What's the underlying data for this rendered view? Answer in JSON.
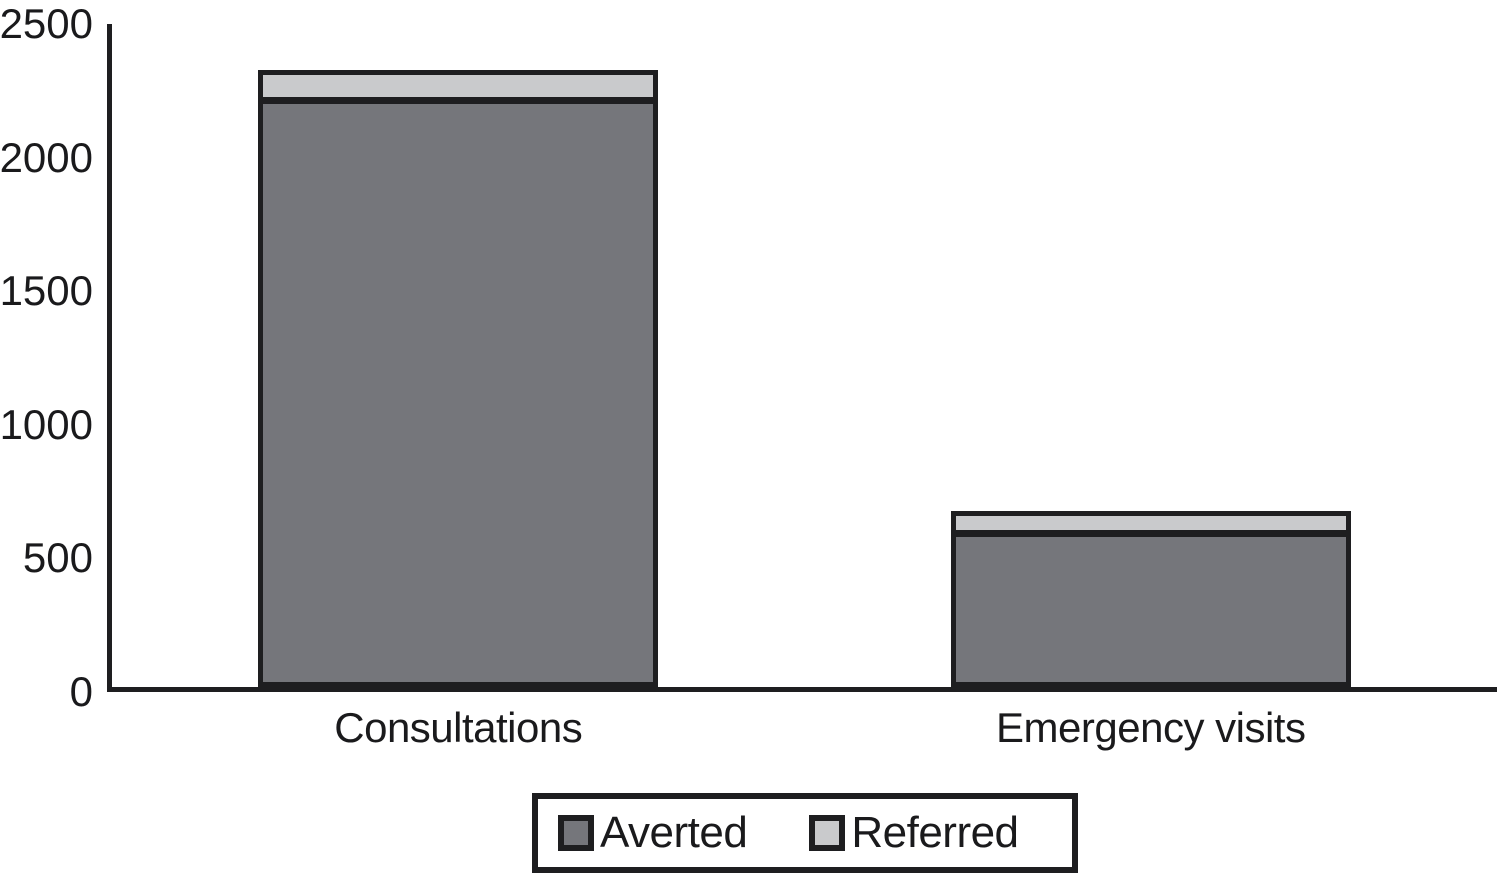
{
  "figure": {
    "background_color": "#ffffff",
    "axis_color": "#1e1e20",
    "text_color": "#1a1a1c"
  },
  "chart_data": {
    "type": "bar",
    "stacked": true,
    "title": "",
    "xlabel": "",
    "ylabel": "",
    "categories": [
      "Consultations",
      "Emergency visits"
    ],
    "series": [
      {
        "name": "Averted",
        "color": "#75767b",
        "values": [
          2200,
          580
        ]
      },
      {
        "name": "Referred",
        "color": "#c9cacc",
        "values": [
          110,
          80
        ]
      }
    ],
    "totals": [
      2310,
      660
    ],
    "ylim": [
      0,
      2500
    ],
    "yticks": [
      0,
      500,
      1000,
      1500,
      2000,
      2500
    ],
    "grid": false,
    "legend_position": "bottom"
  }
}
